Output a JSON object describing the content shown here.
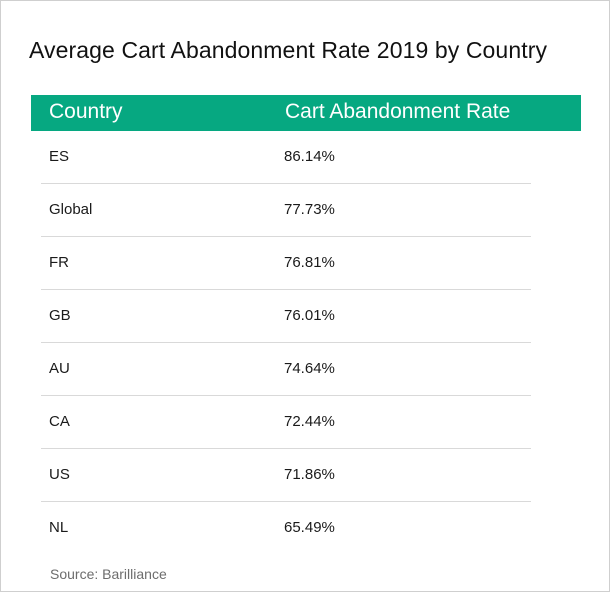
{
  "chart_data": {
    "type": "table",
    "title": "Average Cart Abandonment Rate 2019 by Country",
    "columns": [
      "Country",
      "Cart Abandonment Rate"
    ],
    "rows": [
      {
        "country": "ES",
        "rate": "86.14%"
      },
      {
        "country": "Global",
        "rate": "77.73%"
      },
      {
        "country": "FR",
        "rate": "76.81%"
      },
      {
        "country": "GB",
        "rate": "76.01%"
      },
      {
        "country": "AU",
        "rate": "74.64%"
      },
      {
        "country": "CA",
        "rate": "72.44%"
      },
      {
        "country": "US",
        "rate": "71.86%"
      },
      {
        "country": "NL",
        "rate": "65.49%"
      }
    ],
    "source": "Source: Barilliance",
    "header_color": "#06a881"
  }
}
